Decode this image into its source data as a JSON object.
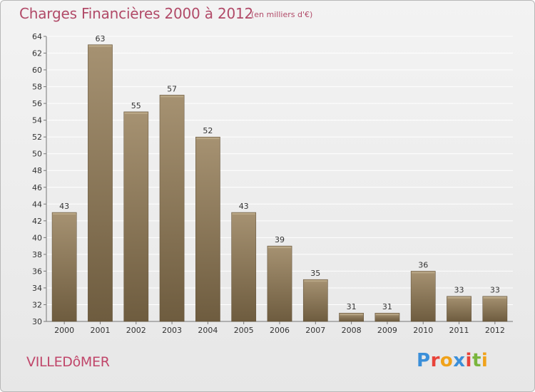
{
  "header": {
    "title": "Charges Financières 2000 à 2012",
    "subtitle": "(en milliers d'€)"
  },
  "footer": {
    "city": "VILLEDôMER",
    "brand": "Proxiti",
    "brand_colors": [
      "#3b8fd9",
      "#e8433a",
      "#f0a21a",
      "#3b8fd9",
      "#e8433a",
      "#7ab53d",
      "#f0a21a"
    ]
  },
  "colors": {
    "accent": "#b14a68",
    "bar_top": "#a69272",
    "bar_bottom": "#6e5c3f",
    "grid": "#ffffff"
  },
  "chart_data": {
    "type": "bar",
    "categories": [
      "2000",
      "2001",
      "2002",
      "2003",
      "2004",
      "2005",
      "2006",
      "2007",
      "2008",
      "2009",
      "2010",
      "2011",
      "2012"
    ],
    "values": [
      43,
      63,
      55,
      57,
      52,
      43,
      39,
      35,
      31,
      31,
      36,
      33,
      33
    ],
    "ylim": [
      30,
      64
    ],
    "yticks": [
      30,
      32,
      34,
      36,
      38,
      40,
      42,
      44,
      46,
      48,
      50,
      52,
      54,
      56,
      58,
      60,
      62,
      64
    ],
    "grid": true,
    "data_labels": true
  }
}
